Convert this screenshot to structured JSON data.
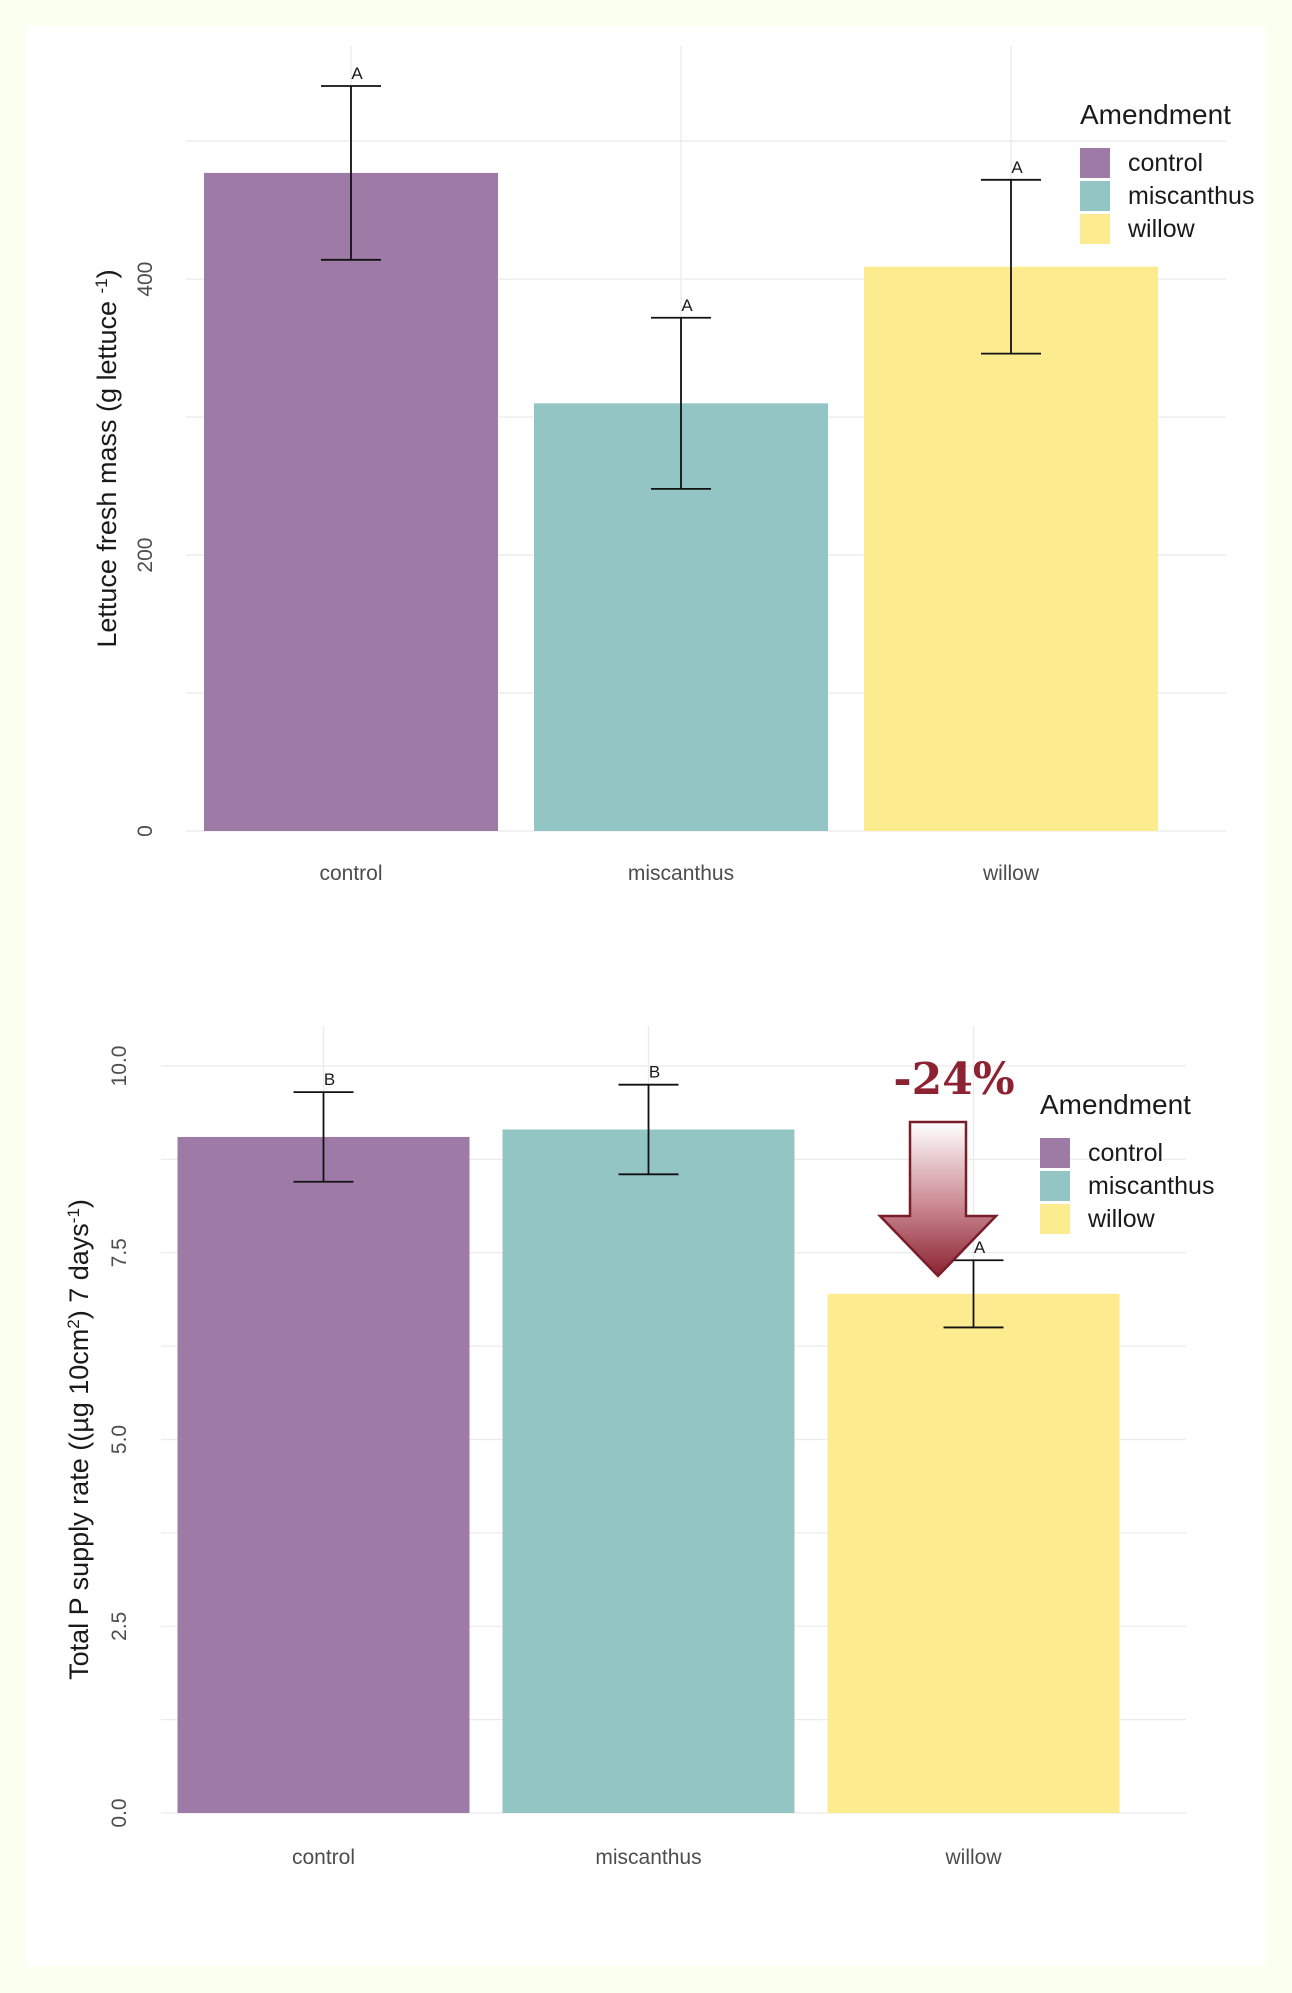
{
  "chart_data": [
    {
      "type": "bar",
      "title": "",
      "categories": [
        "control",
        "miscanthus",
        "willow"
      ],
      "values": [
        477,
        310,
        409
      ],
      "error_bars": [
        [
          414,
          540
        ],
        [
          248,
          372
        ],
        [
          346,
          472
        ]
      ],
      "significance": [
        "A",
        "A",
        "A"
      ],
      "colors": [
        "#9e7ba6",
        "#93c5c4",
        "#fcec8f"
      ],
      "xlabel": "",
      "ylabel": "Lettuce fresh mass (g lettuce -1)",
      "ylabel_parts": {
        "main": "Lettuce fresh mass (g lettuce ",
        "sup": "-1",
        "close": ")"
      },
      "ylim": [
        0,
        540
      ],
      "yticks": [
        "0",
        "200",
        "400"
      ],
      "ytick_values": [
        0,
        200,
        400
      ],
      "grid": true,
      "legend": {
        "title": "Amendment",
        "position": "top-right",
        "entries": [
          "control",
          "miscanthus",
          "willow"
        ]
      }
    },
    {
      "type": "bar",
      "title": "",
      "categories": [
        "control",
        "miscanthus",
        "willow"
      ],
      "values": [
        9.05,
        9.15,
        6.95
      ],
      "error_bars": [
        [
          8.45,
          9.65
        ],
        [
          8.55,
          9.75
        ],
        [
          6.5,
          7.4
        ]
      ],
      "significance": [
        "B",
        "B",
        "A"
      ],
      "colors": [
        "#9e7ba6",
        "#93c5c4",
        "#fcec8f"
      ],
      "xlabel": "",
      "ylabel": "Total P supply rate ((µg 10cm2) 7 days-1)",
      "ylabel_parts": {
        "main": "Total P supply rate ((µg 10cm",
        "sup1": "2",
        "mid": ") 7 days",
        "sup2": "-1",
        "close": ")"
      },
      "ylim": [
        0,
        10
      ],
      "yticks": [
        "0.0",
        "2.5",
        "5.0",
        "7.5",
        "10.0"
      ],
      "ytick_values": [
        0,
        2.5,
        5,
        7.5,
        10
      ],
      "grid": true,
      "legend": {
        "title": "Amendment",
        "position": "top-right",
        "entries": [
          "control",
          "miscanthus",
          "willow"
        ]
      },
      "annotation": {
        "text": "-24%",
        "target": "willow",
        "color": "#8c2232"
      }
    }
  ]
}
